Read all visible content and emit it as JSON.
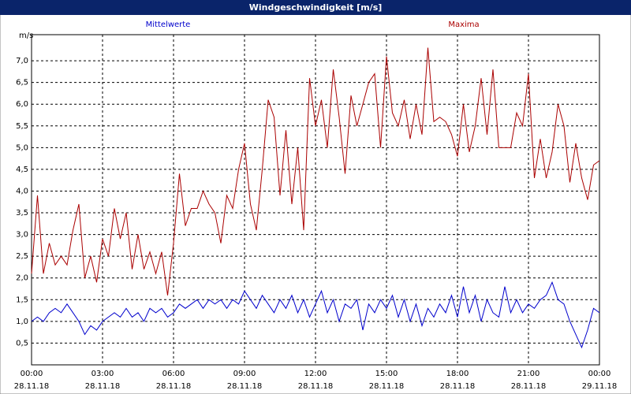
{
  "chart_data": {
    "type": "line",
    "title": "Windgeschwindigkeit [m/s]",
    "ylabel": "m/s",
    "x": [
      0,
      0.25,
      0.5,
      0.75,
      1,
      1.25,
      1.5,
      1.75,
      2,
      2.25,
      2.5,
      2.75,
      3,
      3.25,
      3.5,
      3.75,
      4,
      4.25,
      4.5,
      4.75,
      5,
      5.25,
      5.5,
      5.75,
      6,
      6.25,
      6.5,
      6.75,
      7,
      7.25,
      7.5,
      7.75,
      8,
      8.25,
      8.5,
      8.75,
      9,
      9.25,
      9.5,
      9.75,
      10,
      10.25,
      10.5,
      10.75,
      11,
      11.25,
      11.5,
      11.75,
      12,
      12.25,
      12.5,
      12.75,
      13,
      13.25,
      13.5,
      13.75,
      14,
      14.25,
      14.5,
      14.75,
      15,
      15.25,
      15.5,
      15.75,
      16,
      16.25,
      16.5,
      16.75,
      17,
      17.25,
      17.5,
      17.75,
      18,
      18.25,
      18.5,
      18.75,
      19,
      19.25,
      19.5,
      19.75,
      20,
      20.25,
      20.5,
      20.75,
      21,
      21.25,
      21.5,
      21.75,
      22,
      22.25,
      22.5,
      22.75,
      23,
      23.25,
      23.5,
      23.75,
      24
    ],
    "series": [
      {
        "name": "Mittelwerte",
        "color": "#0000cc",
        "values": [
          1.0,
          1.1,
          1.0,
          1.2,
          1.3,
          1.2,
          1.4,
          1.2,
          1.0,
          0.7,
          0.9,
          0.8,
          1.0,
          1.1,
          1.2,
          1.1,
          1.3,
          1.1,
          1.2,
          1.0,
          1.3,
          1.2,
          1.3,
          1.1,
          1.2,
          1.4,
          1.3,
          1.4,
          1.5,
          1.3,
          1.5,
          1.4,
          1.5,
          1.3,
          1.5,
          1.4,
          1.7,
          1.5,
          1.3,
          1.6,
          1.4,
          1.2,
          1.5,
          1.3,
          1.6,
          1.2,
          1.5,
          1.1,
          1.4,
          1.7,
          1.2,
          1.5,
          1.0,
          1.4,
          1.3,
          1.5,
          0.8,
          1.4,
          1.2,
          1.5,
          1.3,
          1.6,
          1.1,
          1.5,
          1.0,
          1.4,
          0.9,
          1.3,
          1.1,
          1.4,
          1.2,
          1.6,
          1.1,
          1.8,
          1.2,
          1.6,
          1.0,
          1.5,
          1.2,
          1.1,
          1.8,
          1.2,
          1.5,
          1.2,
          1.4,
          1.3,
          1.5,
          1.6,
          1.9,
          1.5,
          1.4,
          1.0,
          0.7,
          0.4,
          0.8,
          1.3,
          1.2
        ]
      },
      {
        "name": "Maxima",
        "color": "#aa0000",
        "values": [
          2.1,
          3.9,
          2.1,
          2.8,
          2.3,
          2.5,
          2.3,
          3.1,
          3.7,
          2.0,
          2.5,
          1.9,
          2.9,
          2.5,
          3.6,
          2.9,
          3.5,
          2.2,
          3.0,
          2.2,
          2.6,
          2.1,
          2.6,
          1.6,
          2.8,
          4.4,
          3.2,
          3.6,
          3.6,
          4.0,
          3.7,
          3.5,
          2.8,
          3.9,
          3.6,
          4.5,
          5.1,
          3.7,
          3.1,
          4.5,
          6.1,
          5.7,
          3.9,
          5.4,
          3.7,
          5.0,
          3.1,
          6.6,
          5.5,
          6.1,
          5.0,
          6.8,
          5.7,
          4.4,
          6.2,
          5.5,
          6.0,
          6.5,
          6.7,
          5.0,
          7.1,
          5.8,
          5.5,
          6.1,
          5.2,
          6.0,
          5.3,
          7.3,
          5.6,
          5.7,
          5.6,
          5.3,
          4.8,
          6.0,
          4.9,
          5.5,
          6.6,
          5.3,
          6.8,
          5.0,
          5.0,
          5.0,
          5.8,
          5.5,
          6.7,
          4.3,
          5.2,
          4.3,
          4.9,
          6.0,
          5.5,
          4.2,
          5.1,
          4.3,
          3.8,
          4.6,
          4.7
        ]
      }
    ],
    "xlim": [
      0,
      24
    ],
    "xticks": [
      {
        "value": 0,
        "label": "00:00"
      },
      {
        "value": 3,
        "label": "03:00"
      },
      {
        "value": 6,
        "label": "06:00"
      },
      {
        "value": 9,
        "label": "09:00"
      },
      {
        "value": 12,
        "label": "12:00"
      },
      {
        "value": 15,
        "label": "15:00"
      },
      {
        "value": 18,
        "label": "18:00"
      },
      {
        "value": 21,
        "label": "21:00"
      },
      {
        "value": 24,
        "label": "00:00"
      }
    ],
    "xtick_dates": [
      "28.11.18",
      "28.11.18",
      "28.11.18",
      "28.11.18",
      "28.11.18",
      "28.11.18",
      "28.11.18",
      "28.11.18",
      "29.11.18"
    ],
    "ylim": [
      0,
      7.6
    ],
    "yticks": [
      {
        "value": 0.5,
        "label": "0,5"
      },
      {
        "value": 1.0,
        "label": "1,0"
      },
      {
        "value": 1.5,
        "label": "1,5"
      },
      {
        "value": 2.0,
        "label": "2,0"
      },
      {
        "value": 2.5,
        "label": "2,5"
      },
      {
        "value": 3.0,
        "label": "3,0"
      },
      {
        "value": 3.5,
        "label": "3,5"
      },
      {
        "value": 4.0,
        "label": "4,0"
      },
      {
        "value": 4.5,
        "label": "4,5"
      },
      {
        "value": 5.0,
        "label": "5,0"
      },
      {
        "value": 5.5,
        "label": "5,5"
      },
      {
        "value": 6.0,
        "label": "6,0"
      },
      {
        "value": 6.5,
        "label": "6,5"
      },
      {
        "value": 7.0,
        "label": "7,0"
      }
    ],
    "grid": true
  }
}
